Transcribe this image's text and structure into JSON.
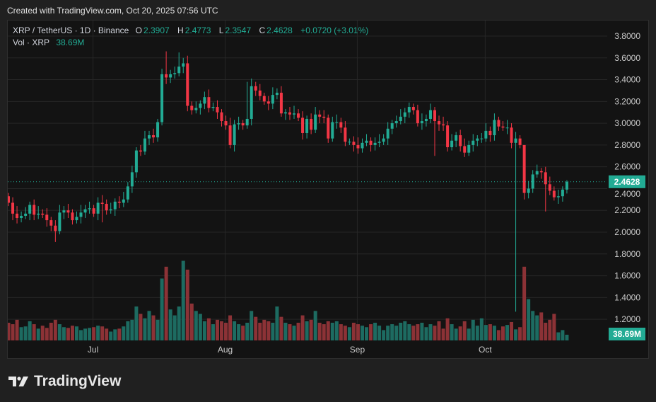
{
  "header": {
    "created": "Created with TradingView.com, Oct 20, 2025 07:56 UTC"
  },
  "legend": {
    "symbol": "XRP / TetherUS · 1D · Binance",
    "o_label": "O",
    "o": "2.3907",
    "h_label": "H",
    "h": "2.4773",
    "l_label": "L",
    "l": "2.3547",
    "c_label": "C",
    "c": "2.4628",
    "change": "+0.0720 (+3.01%)",
    "vol_label": "Vol · XRP",
    "vol": "38.69M"
  },
  "footer": {
    "brand": "TradingView"
  },
  "colors": {
    "up": "#22ab94",
    "down": "#f23645",
    "vol_up": "#1d6b61",
    "vol_down": "#8c3236",
    "price_tag": "#22ab94"
  },
  "chart_data": {
    "type": "candlestick",
    "start_date": "2025-06-11",
    "interval": "1D",
    "price_axis": {
      "ticks": [
        "3.8000",
        "3.6000",
        "3.4000",
        "3.2000",
        "3.0000",
        "2.8000",
        "2.6000",
        "2.4000",
        "2.2000",
        "2.0000",
        "1.8000",
        "1.6000",
        "1.4000",
        "1.2000"
      ],
      "range": [
        1.1,
        3.85
      ]
    },
    "x_ticks": [
      {
        "label": "Jul",
        "index": 20
      },
      {
        "label": "Aug",
        "index": 51
      },
      {
        "label": "Sep",
        "index": 82
      },
      {
        "label": "Oct",
        "index": 112
      }
    ],
    "last_price_label": "2.4628",
    "last_volume_label": "38.69M",
    "first_open": 2.33,
    "close": [
      2.27,
      2.17,
      2.13,
      2.15,
      2.17,
      2.25,
      2.16,
      2.17,
      2.16,
      2.11,
      2.06,
      2.01,
      2.18,
      2.2,
      2.18,
      2.11,
      2.14,
      2.18,
      2.21,
      2.22,
      2.17,
      2.27,
      2.26,
      2.2,
      2.21,
      2.28,
      2.27,
      2.3,
      2.42,
      2.55,
      2.75,
      2.74,
      2.86,
      2.89,
      2.87,
      3.01,
      3.45,
      3.42,
      3.45,
      3.46,
      3.52,
      3.55,
      3.16,
      3.12,
      3.14,
      3.18,
      3.24,
      3.14,
      3.15,
      3.1,
      3.02,
      2.98,
      2.8,
      2.99,
      3.0,
      2.98,
      3.04,
      3.34,
      3.3,
      3.25,
      3.2,
      3.18,
      3.26,
      3.28,
      3.09,
      3.1,
      3.08,
      3.09,
      3.05,
      2.91,
      3.04,
      2.94,
      3.08,
      3.06,
      3.05,
      2.86,
      3.01,
      3.01,
      2.96,
      2.83,
      2.83,
      2.8,
      2.77,
      2.82,
      2.84,
      2.8,
      2.82,
      2.83,
      2.86,
      2.95,
      3.0,
      3.02,
      3.06,
      3.1,
      3.15,
      3.12,
      3.0,
      3.02,
      3.04,
      3.12,
      3.02,
      2.99,
      2.98,
      2.78,
      2.84,
      2.89,
      2.79,
      2.73,
      2.8,
      2.84,
      2.86,
      2.86,
      2.93,
      2.89,
      3.03,
      2.97,
      2.96,
      2.96,
      2.82,
      2.86,
      2.8,
      2.36,
      2.4,
      2.53,
      2.56,
      2.55,
      2.44,
      2.38,
      2.32,
      2.33,
      2.3907,
      2.4628
    ],
    "high_overrides": {
      "37": 3.66,
      "40": 3.65,
      "41": 3.6,
      "56": 3.38,
      "94": 3.19,
      "131": 2.4773,
      "121": 2.64
    },
    "low_overrides": {
      "11": 1.91,
      "22": 2.09,
      "100": 2.7,
      "118": 2.77,
      "119": 1.27,
      "126": 2.19,
      "131": 2.3547
    },
    "volume_millions": [
      120,
      110,
      140,
      90,
      95,
      130,
      110,
      80,
      100,
      85,
      120,
      140,
      110,
      90,
      85,
      100,
      95,
      70,
      80,
      85,
      90,
      100,
      95,
      80,
      60,
      75,
      80,
      95,
      130,
      140,
      230,
      180,
      150,
      200,
      170,
      140,
      420,
      500,
      210,
      170,
      230,
      540,
      480,
      250,
      200,
      180,
      130,
      150,
      110,
      140,
      130,
      120,
      170,
      130,
      110,
      100,
      120,
      200,
      160,
      120,
      140,
      130,
      120,
      230,
      160,
      120,
      110,
      100,
      120,
      170,
      130,
      140,
      200,
      120,
      110,
      130,
      120,
      130,
      110,
      100,
      90,
      120,
      110,
      100,
      90,
      110,
      120,
      100,
      70,
      100,
      110,
      100,
      120,
      130,
      110,
      100,
      110,
      120,
      90,
      110,
      100,
      130,
      80,
      150,
      110,
      80,
      95,
      130,
      80,
      140,
      100,
      150,
      105,
      110,
      100,
      70,
      95,
      105,
      125,
      75,
      90,
      500,
      280,
      200,
      170,
      190,
      120,
      140,
      180,
      55,
      70,
      38.69
    ]
  }
}
